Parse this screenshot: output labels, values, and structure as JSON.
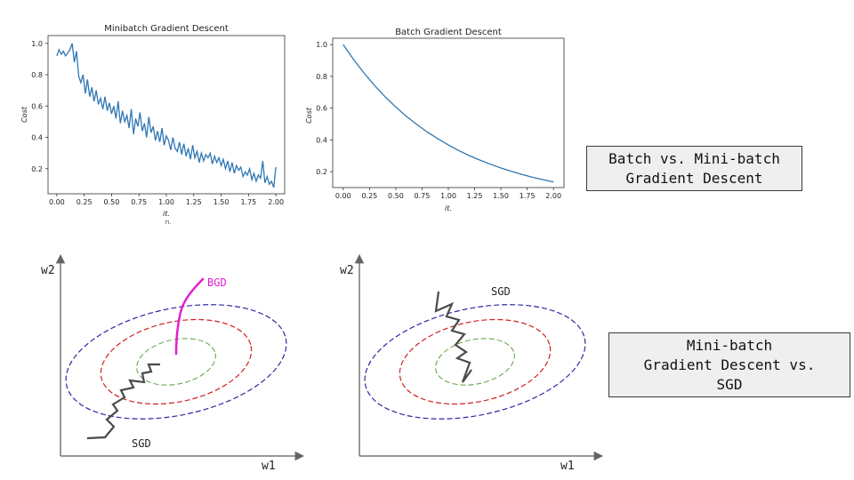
{
  "chart_data": [
    {
      "type": "line",
      "title": "Minibatch Gradient Descent",
      "xlabel": "it.",
      "xlabel_extra": "п.",
      "ylabel": "Cost",
      "xlim": [
        -0.08,
        2.08
      ],
      "ylim": [
        0.04,
        1.05
      ],
      "xticks": [
        "0.00",
        "0.25",
        "0.50",
        "0.75",
        "1.00",
        "1.25",
        "1.50",
        "1.75",
        "2.00"
      ],
      "yticks": [
        "0.2",
        "0.4",
        "0.6",
        "0.8",
        "1.0"
      ],
      "series": [
        {
          "color": "#2f77b4",
          "x": [
            0.0,
            0.02,
            0.04,
            0.06,
            0.08,
            0.1,
            0.12,
            0.14,
            0.16,
            0.18,
            0.2,
            0.22,
            0.24,
            0.26,
            0.28,
            0.3,
            0.32,
            0.34,
            0.36,
            0.38,
            0.4,
            0.42,
            0.44,
            0.46,
            0.48,
            0.5,
            0.52,
            0.54,
            0.56,
            0.58,
            0.6,
            0.62,
            0.64,
            0.66,
            0.68,
            0.7,
            0.72,
            0.74,
            0.76,
            0.78,
            0.8,
            0.82,
            0.84,
            0.86,
            0.88,
            0.9,
            0.92,
            0.94,
            0.96,
            0.98,
            1.0,
            1.02,
            1.04,
            1.06,
            1.08,
            1.1,
            1.12,
            1.14,
            1.16,
            1.18,
            1.2,
            1.22,
            1.24,
            1.26,
            1.28,
            1.3,
            1.32,
            1.34,
            1.36,
            1.38,
            1.4,
            1.42,
            1.44,
            1.46,
            1.48,
            1.5,
            1.52,
            1.54,
            1.56,
            1.58,
            1.6,
            1.62,
            1.64,
            1.66,
            1.68,
            1.7,
            1.72,
            1.74,
            1.76,
            1.78,
            1.8,
            1.82,
            1.84,
            1.86,
            1.88,
            1.9,
            1.92,
            1.94,
            1.96,
            1.98,
            2.0
          ],
          "y": [
            0.92,
            0.96,
            0.93,
            0.95,
            0.92,
            0.94,
            0.96,
            1.0,
            0.88,
            0.95,
            0.79,
            0.75,
            0.8,
            0.68,
            0.77,
            0.66,
            0.72,
            0.63,
            0.7,
            0.61,
            0.65,
            0.58,
            0.66,
            0.57,
            0.62,
            0.55,
            0.6,
            0.52,
            0.63,
            0.49,
            0.57,
            0.5,
            0.54,
            0.46,
            0.58,
            0.42,
            0.52,
            0.47,
            0.56,
            0.44,
            0.49,
            0.4,
            0.53,
            0.43,
            0.47,
            0.38,
            0.44,
            0.37,
            0.46,
            0.35,
            0.41,
            0.38,
            0.32,
            0.4,
            0.33,
            0.31,
            0.37,
            0.29,
            0.36,
            0.28,
            0.33,
            0.26,
            0.35,
            0.27,
            0.31,
            0.24,
            0.3,
            0.25,
            0.29,
            0.27,
            0.3,
            0.23,
            0.28,
            0.24,
            0.27,
            0.22,
            0.26,
            0.2,
            0.25,
            0.18,
            0.24,
            0.17,
            0.22,
            0.19,
            0.21,
            0.15,
            0.18,
            0.16,
            0.2,
            0.13,
            0.17,
            0.12,
            0.16,
            0.14,
            0.25,
            0.11,
            0.15,
            0.1,
            0.12,
            0.08,
            0.21
          ]
        }
      ]
    },
    {
      "type": "line",
      "title": "Batch Gradient Descent",
      "xlabel": "it.",
      "ylabel": "Cost",
      "xlim": [
        -0.1,
        2.1
      ],
      "ylim": [
        0.1,
        1.04
      ],
      "xticks": [
        "0.00",
        "0.25",
        "0.50",
        "0.75",
        "1.00",
        "1.25",
        "1.50",
        "1.75",
        "2.00"
      ],
      "yticks": [
        "0.2",
        "0.4",
        "0.6",
        "0.8",
        "1.0"
      ],
      "series": [
        {
          "color": "#2f77b4",
          "x": [
            0.0,
            0.1,
            0.2,
            0.3,
            0.4,
            0.5,
            0.6,
            0.7,
            0.8,
            0.9,
            1.0,
            1.1,
            1.2,
            1.3,
            1.4,
            1.5,
            1.6,
            1.7,
            1.8,
            1.9,
            2.0
          ],
          "y": [
            1.0,
            0.905,
            0.819,
            0.741,
            0.67,
            0.607,
            0.549,
            0.497,
            0.449,
            0.407,
            0.368,
            0.333,
            0.301,
            0.273,
            0.247,
            0.223,
            0.202,
            0.183,
            0.165,
            0.15,
            0.135
          ]
        }
      ]
    }
  ],
  "diagrams": {
    "left": {
      "x_axis_label": "w1",
      "y_axis_label": "w2",
      "bgd_label": "BGD",
      "sgd_label": "SGD",
      "bgd_color": "#e020d0",
      "sgd_color": "#4a4a4a",
      "contour_colors": [
        "#2a2aa0",
        "#d02020",
        "#5aa040"
      ]
    },
    "right": {
      "x_axis_label": "w1",
      "y_axis_label": "w2",
      "sgd_label": "SGD",
      "sgd_color": "#4a4a4a",
      "contour_colors": [
        "#2a2aa0",
        "#d02020",
        "#5aa040"
      ]
    }
  },
  "captions": {
    "top": [
      "Batch vs. Mini-batch",
      "Gradient Descent"
    ],
    "bottom": [
      "Mini-batch",
      "Gradient Descent vs.",
      "SGD"
    ]
  }
}
